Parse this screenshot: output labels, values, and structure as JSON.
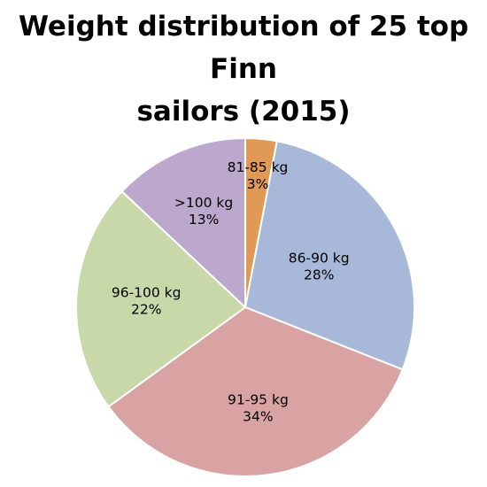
{
  "chart_data": {
    "type": "pie",
    "title_lines": [
      "Weight distribution of 25 top Finn",
      "sailors (2015)"
    ],
    "slices": [
      {
        "label": "81-85 kg",
        "value": 3,
        "percent_label": "3%",
        "color": "#E09A55"
      },
      {
        "label": "86-90 kg",
        "value": 28,
        "percent_label": "28%",
        "color": "#A8B8D8"
      },
      {
        "label": "91-95 kg",
        "value": 34,
        "percent_label": "34%",
        "color": "#D9A3A3"
      },
      {
        "label": "96-100 kg",
        "value": 22,
        "percent_label": "22%",
        "color": "#C8D8A8"
      },
      {
        "label": ">100 kg",
        "value": 13,
        "percent_label": "13%",
        "color": "#BBA8CC"
      }
    ],
    "start_angle_deg": 0,
    "direction": "clockwise",
    "slice_border_color": "#ffffff"
  }
}
